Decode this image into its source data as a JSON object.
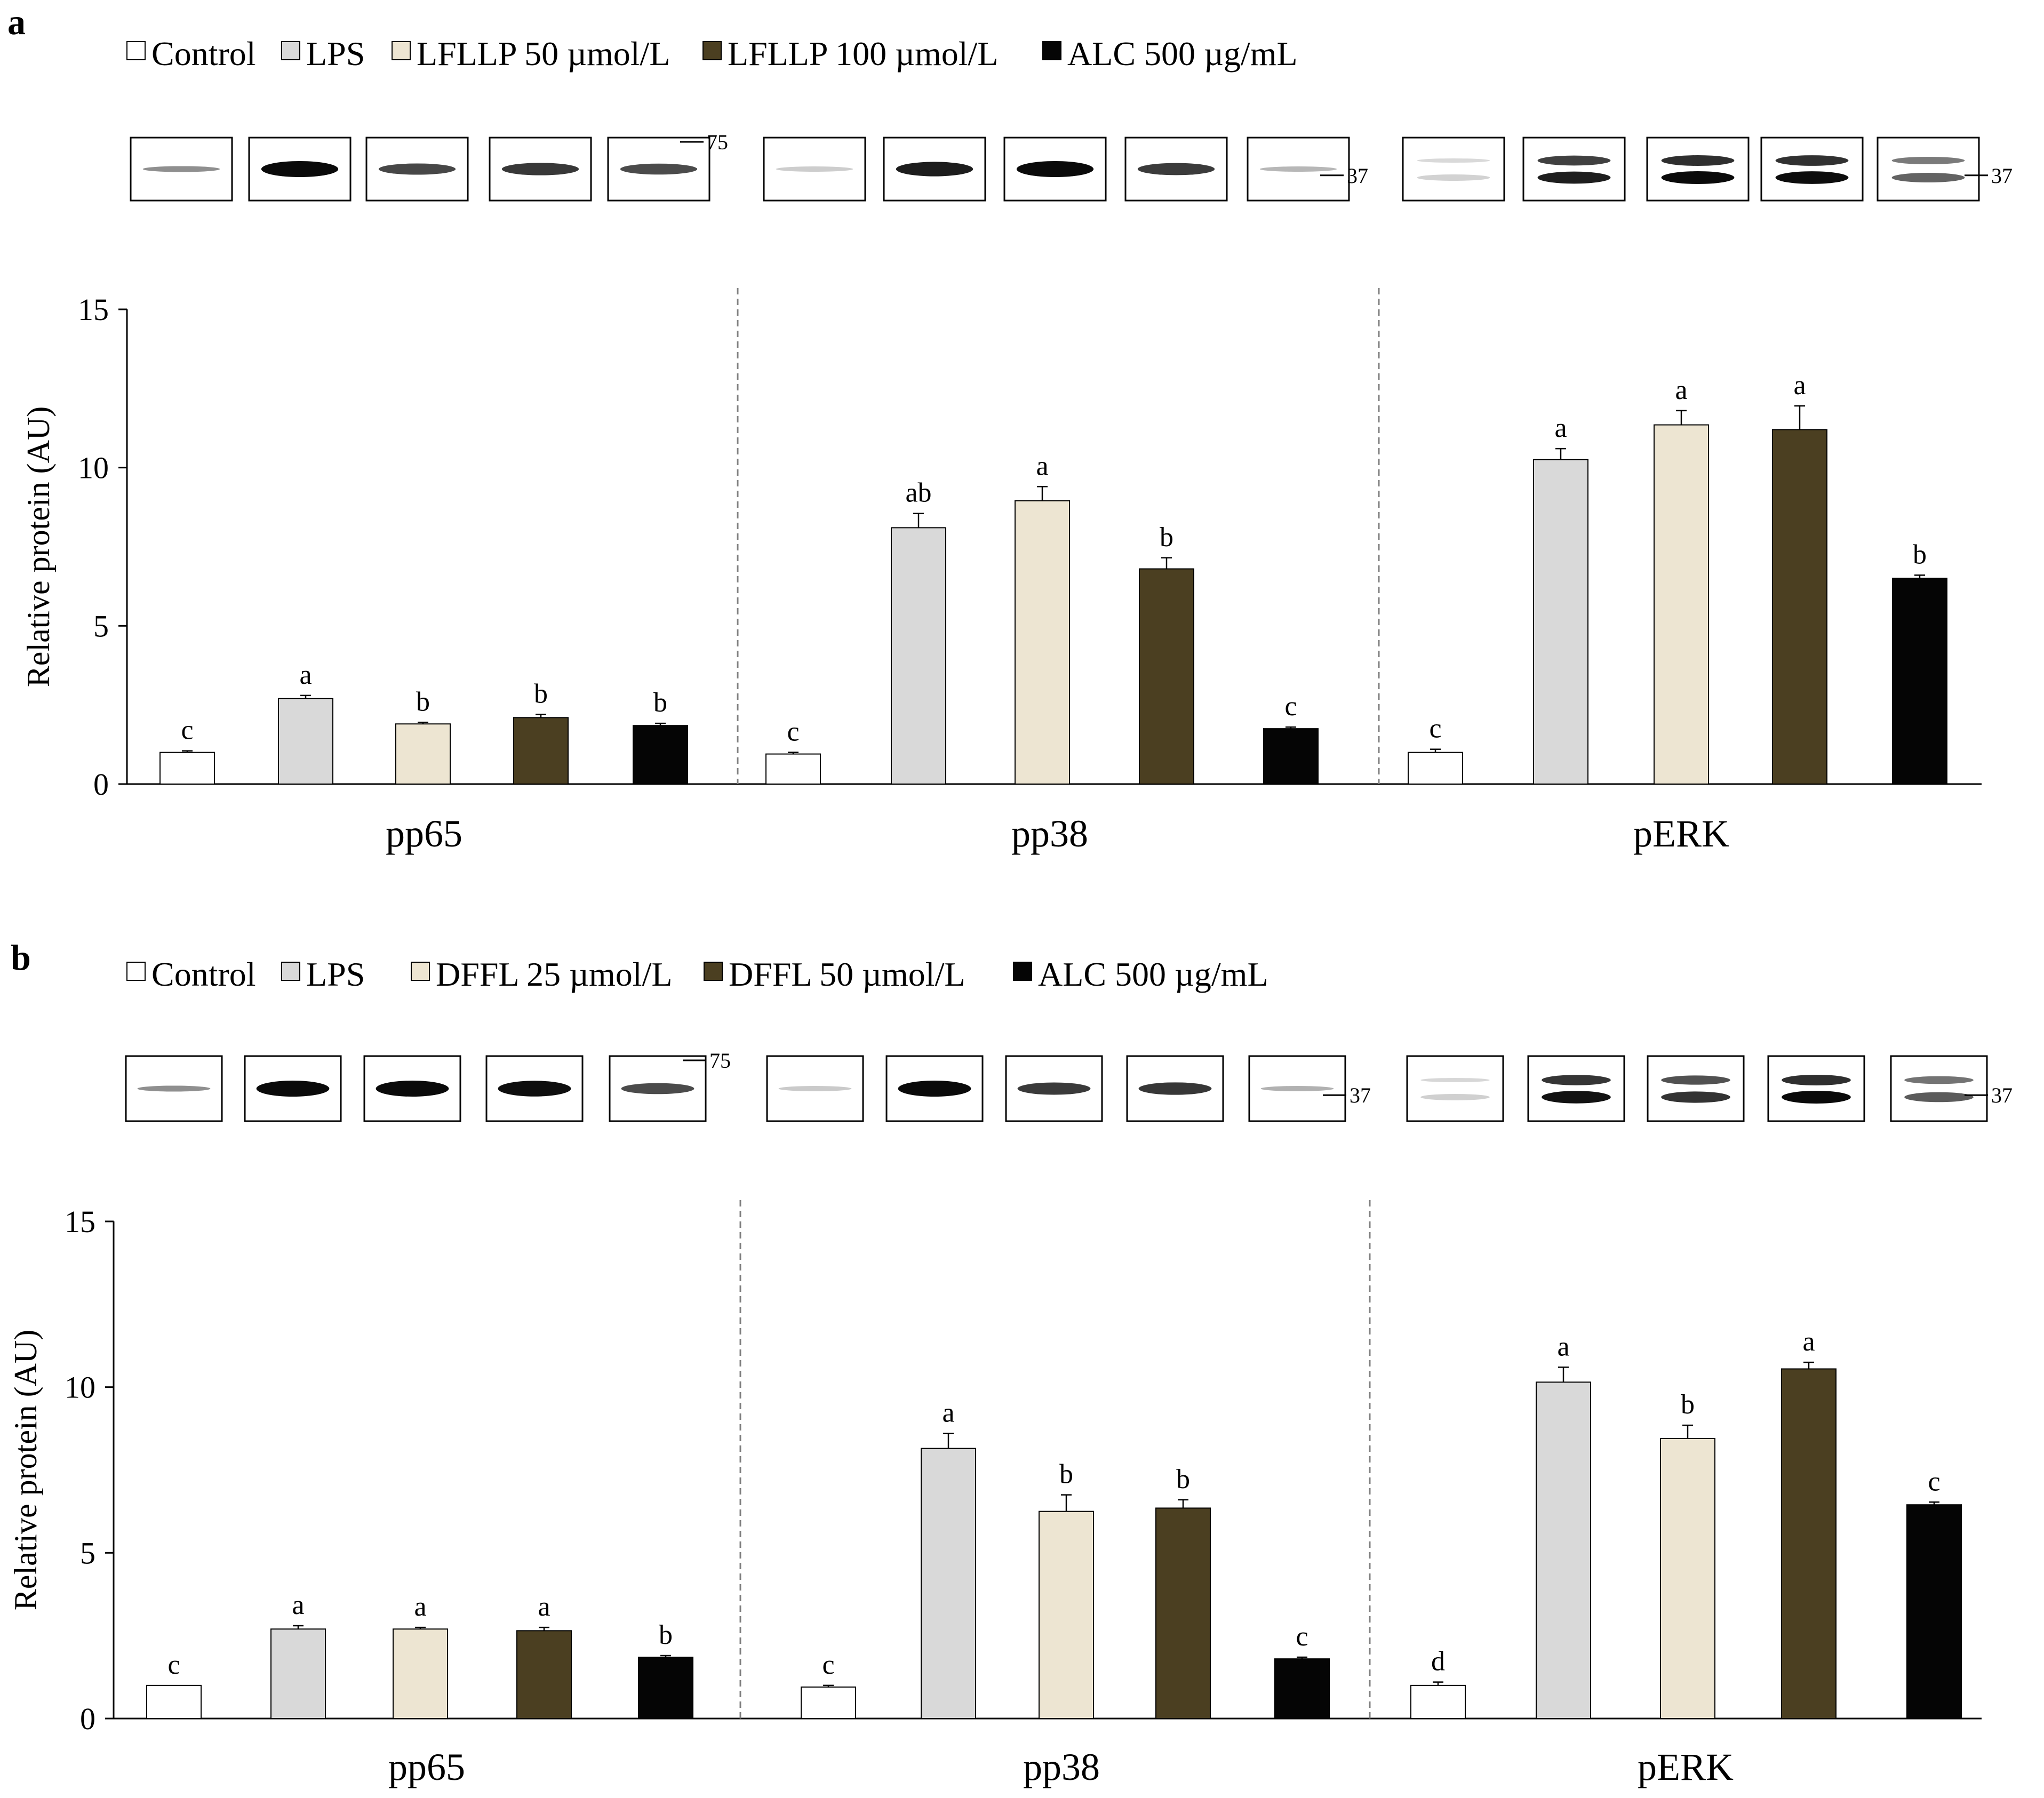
{
  "figure": {
    "panels": [
      "a",
      "b"
    ]
  },
  "colors": {
    "Control": "#ffffff",
    "LPS": "#d9d9d9",
    "LFLLP 50 µmol/L": "#ede5d2",
    "LFLLP 100 µmol/L": "#4b3f21",
    "DFFL 25 µmol/L": "#ede5d2",
    "DFFL 50 µmol/L": "#4b3f21",
    "ALC 500 µg/mL": "#050505"
  },
  "chart_data": [
    {
      "panel": "a",
      "type": "bar",
      "title": "",
      "legend": [
        "Control",
        "LPS",
        "LFLLP 50 µmol/L",
        "LFLLP 100 µmol/L",
        "ALC 500 µg/mL"
      ],
      "legend_position": "top",
      "categories": [
        "pp65",
        "pp38",
        "pERK"
      ],
      "ylabel": "Relative protein (AU)",
      "xlabel": "",
      "ylim": [
        0,
        15
      ],
      "yticks": [
        0,
        5,
        10,
        15
      ],
      "grid": false,
      "series": [
        {
          "name": "Control",
          "values": [
            1.0,
            0.95,
            1.0
          ],
          "errors": [
            0.05,
            0.05,
            0.1
          ],
          "letters": [
            "c",
            "c",
            "c"
          ]
        },
        {
          "name": "LPS",
          "values": [
            2.7,
            8.1,
            10.25
          ],
          "errors": [
            0.1,
            0.45,
            0.35
          ],
          "letters": [
            "a",
            "ab",
            "a"
          ]
        },
        {
          "name": "LFLLP 50 µmol/L",
          "values": [
            1.9,
            8.95,
            11.35
          ],
          "errors": [
            0.05,
            0.45,
            0.45
          ],
          "letters": [
            "b",
            "a",
            "a"
          ]
        },
        {
          "name": "LFLLP 100 µmol/L",
          "values": [
            2.1,
            6.8,
            11.2
          ],
          "errors": [
            0.1,
            0.35,
            0.75
          ],
          "letters": [
            "b",
            "b",
            "a"
          ]
        },
        {
          "name": "ALC 500 µg/mL",
          "values": [
            1.85,
            1.75,
            6.5
          ],
          "errors": [
            0.07,
            0.05,
            0.1
          ],
          "letters": [
            "b",
            "c",
            "b"
          ]
        }
      ],
      "blot_markers": [
        "75",
        "37",
        "37"
      ]
    },
    {
      "panel": "b",
      "type": "bar",
      "title": "",
      "legend": [
        "Control",
        "LPS",
        "DFFL 25 µmol/L",
        "DFFL 50 µmol/L",
        "ALC 500 µg/mL"
      ],
      "legend_position": "top",
      "categories": [
        "pp65",
        "pp38",
        "pERK"
      ],
      "ylabel": "Relative protein (AU)",
      "xlabel": "",
      "ylim": [
        0,
        15
      ],
      "yticks": [
        0,
        5,
        10,
        15
      ],
      "grid": false,
      "series": [
        {
          "name": "Control",
          "values": [
            1.0,
            0.95,
            1.0
          ],
          "errors": [
            0.0,
            0.05,
            0.1
          ],
          "letters": [
            "c",
            "c",
            "d"
          ]
        },
        {
          "name": "LPS",
          "values": [
            2.7,
            8.15,
            10.15
          ],
          "errors": [
            0.1,
            0.45,
            0.45
          ],
          "letters": [
            "a",
            "a",
            "a"
          ]
        },
        {
          "name": "DFFL 25 µmol/L",
          "values": [
            2.7,
            6.25,
            8.45
          ],
          "errors": [
            0.05,
            0.5,
            0.4
          ],
          "letters": [
            "a",
            "b",
            "b"
          ]
        },
        {
          "name": "DFFL 50 µmol/L",
          "values": [
            2.65,
            6.35,
            10.55
          ],
          "errors": [
            0.1,
            0.25,
            0.2
          ],
          "letters": [
            "a",
            "b",
            "a"
          ]
        },
        {
          "name": "ALC 500 µg/mL",
          "values": [
            1.85,
            1.8,
            6.45
          ],
          "errors": [
            0.05,
            0.05,
            0.08
          ],
          "letters": [
            "b",
            "c",
            "c"
          ]
        }
      ],
      "blot_markers": [
        "75",
        "37",
        "37"
      ]
    }
  ]
}
